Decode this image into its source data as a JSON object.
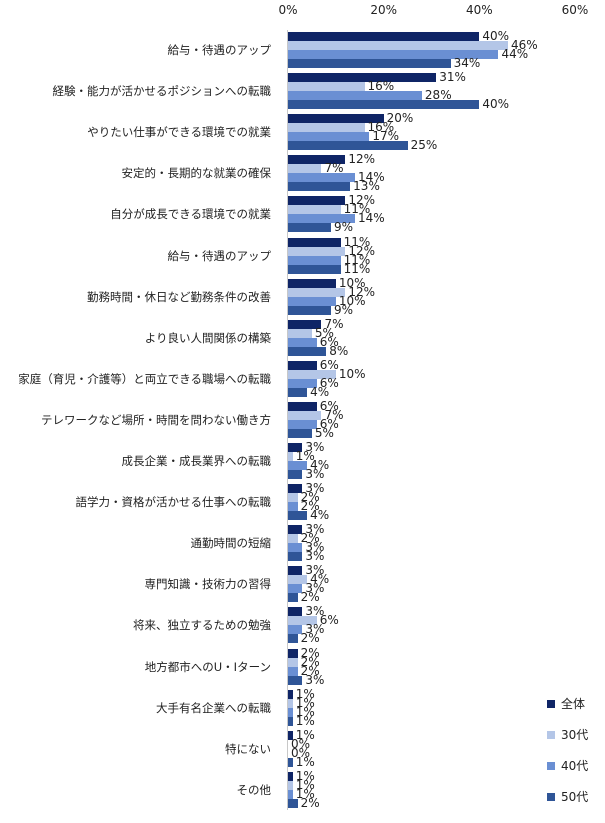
{
  "chart_data": {
    "type": "bar",
    "orientation": "horizontal",
    "title": "",
    "xlabel": "",
    "ylabel": "",
    "xlim": [
      0,
      60
    ],
    "x_ticks": [
      "0%",
      "20%",
      "40%",
      "60%"
    ],
    "grid": false,
    "legend_position": "bottom-right",
    "categories": [
      "給与・待遇のアップ",
      "経験・能力が活かせるポジションへの転職",
      "やりたい仕事ができる環境での就業",
      "安定的・長期的な就業の確保",
      "自分が成長できる環境での就業",
      "給与・待遇のアップ",
      "勤務時間・休日など勤務条件の改善",
      "より良い人間関係の構築",
      "家庭（育児・介護等）と両立できる職場への転職",
      "テレワークなど場所・時間を問わない働き方",
      "成長企業・成長業界への転職",
      "語学力・資格が活かせる仕事への転職",
      "通勤時間の短縮",
      "専門知識・技術力の習得",
      "将来、独立するための勉強",
      "地方都市へのU・Iターン",
      "大手有名企業への転職",
      "特にない",
      "その他"
    ],
    "series": [
      {
        "name": "全体",
        "color": "#0f2566",
        "values": [
          40,
          31,
          20,
          12,
          12,
          11,
          10,
          7,
          6,
          6,
          3,
          3,
          3,
          3,
          3,
          2,
          1,
          1,
          1
        ]
      },
      {
        "name": "30代",
        "color": "#b4c6e7",
        "values": [
          46,
          16,
          16,
          7,
          11,
          12,
          12,
          5,
          10,
          7,
          1,
          2,
          2,
          4,
          6,
          2,
          1,
          0,
          1
        ]
      },
      {
        "name": "40代",
        "color": "#6a8fd3",
        "values": [
          44,
          28,
          17,
          14,
          14,
          11,
          10,
          6,
          6,
          6,
          4,
          2,
          3,
          3,
          3,
          2,
          1,
          0,
          1
        ]
      },
      {
        "name": "50代",
        "color": "#2f5597",
        "values": [
          34,
          40,
          25,
          13,
          9,
          11,
          9,
          8,
          4,
          5,
          3,
          4,
          3,
          2,
          2,
          3,
          1,
          1,
          2
        ]
      }
    ],
    "value_suffix": "%"
  }
}
